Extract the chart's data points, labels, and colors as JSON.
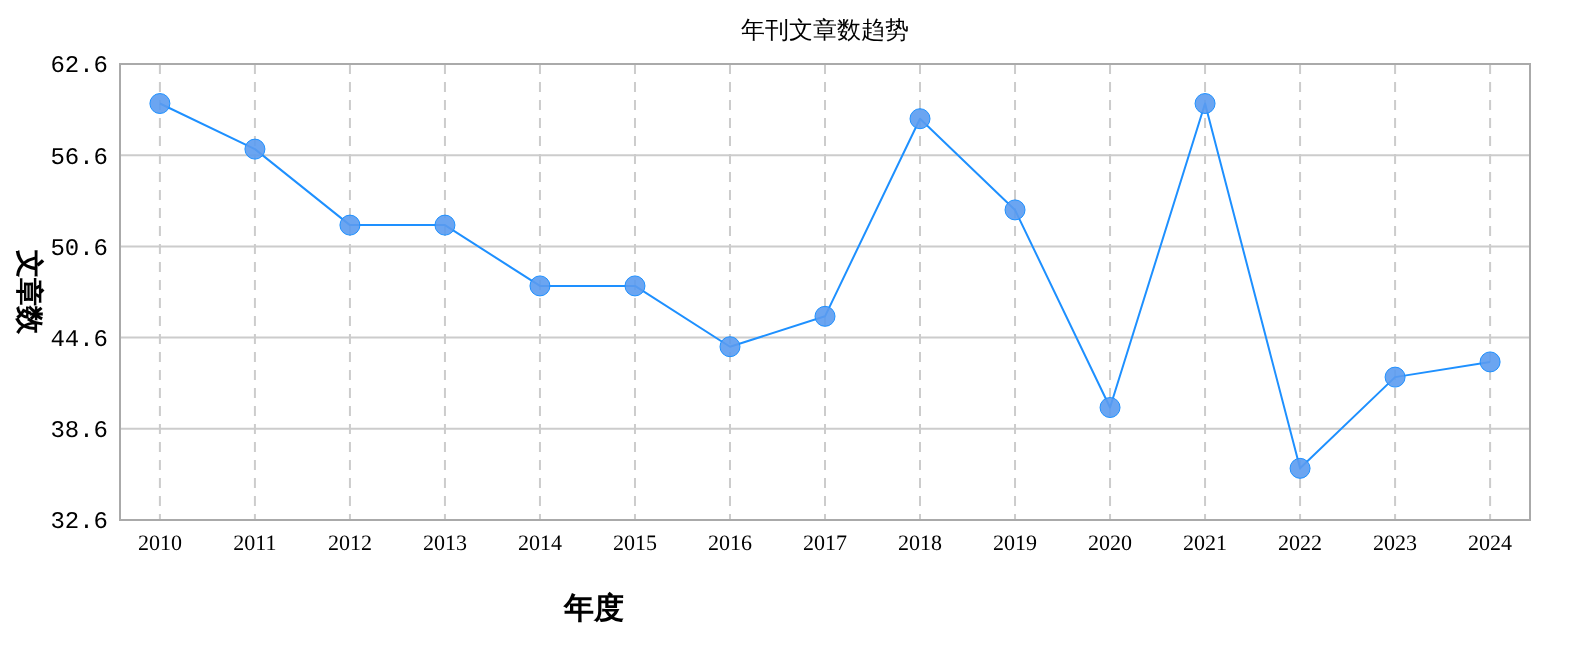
{
  "chart_data": {
    "type": "line",
    "title": "年刊文章数趋势",
    "xlabel": "年度",
    "ylabel": "文章数",
    "categories": [
      "2010",
      "2011",
      "2012",
      "2013",
      "2014",
      "2015",
      "2016",
      "2017",
      "2018",
      "2019",
      "2020",
      "2021",
      "2022",
      "2023",
      "2024"
    ],
    "series": [
      {
        "color": "#1e90ff",
        "values": [
          60,
          57,
          52,
          52,
          48,
          48,
          44,
          46,
          59,
          53,
          40,
          60,
          36,
          42,
          43
        ]
      }
    ],
    "ylim": [
      32.6,
      62.6
    ],
    "yticks": [
      32.6,
      38.6,
      44.6,
      50.6,
      56.6,
      62.6
    ],
    "grid": true,
    "marker": "circle",
    "line_style": "solid"
  }
}
